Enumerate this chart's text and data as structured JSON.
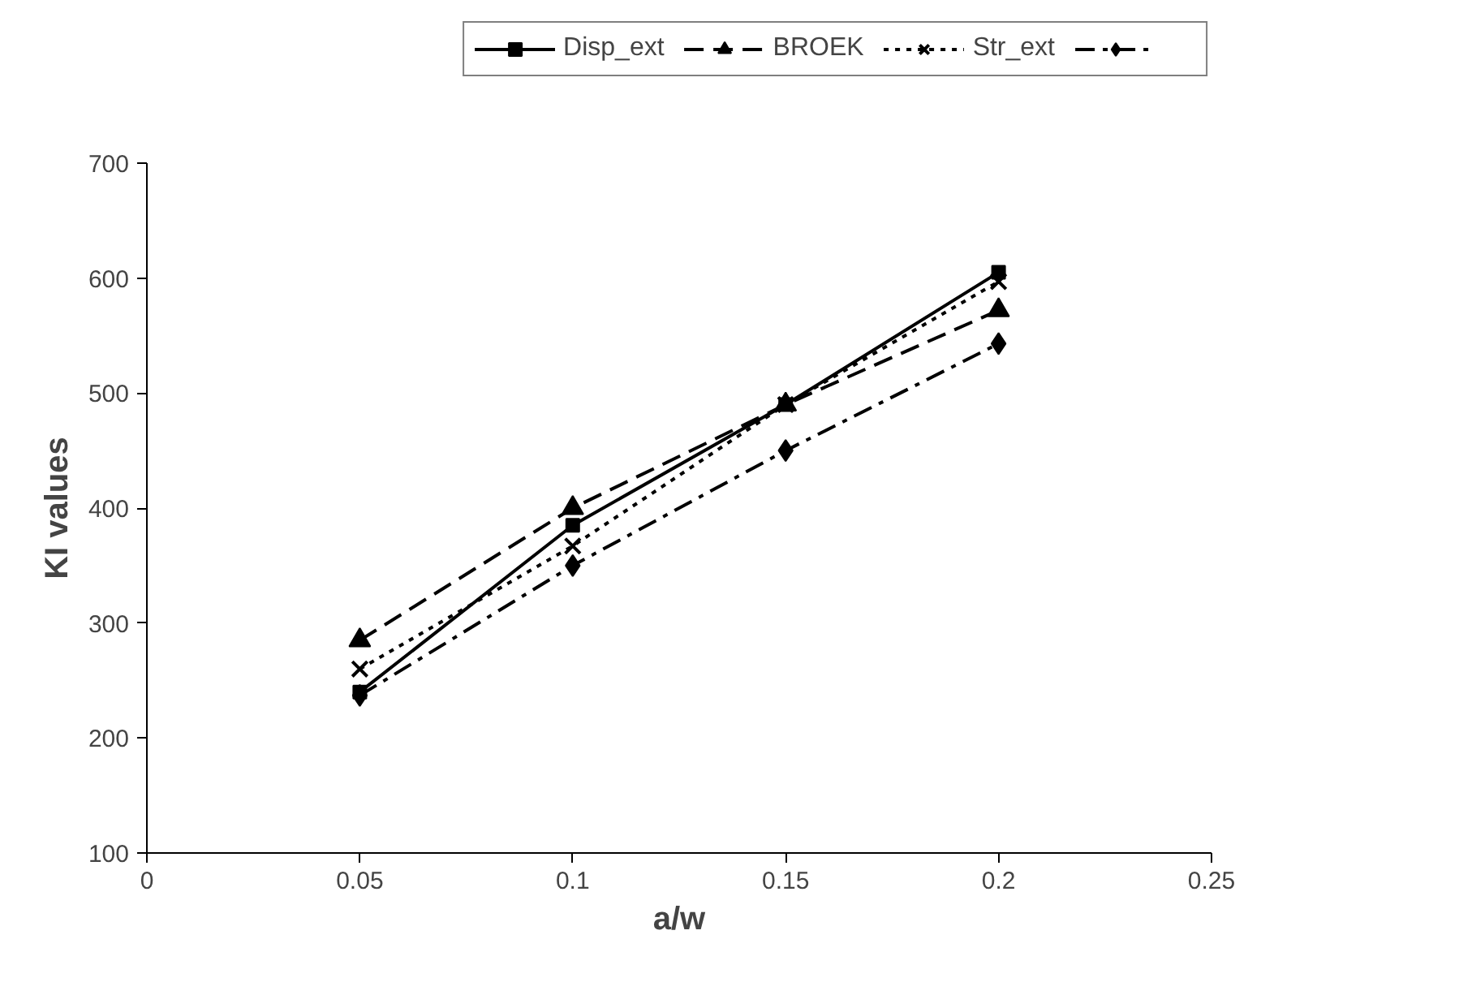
{
  "chart_data": {
    "type": "line",
    "xlabel": "a/w",
    "ylabel": "KI values",
    "x": [
      0.05,
      0.1,
      0.15,
      0.2
    ],
    "xlim": [
      0,
      0.25
    ],
    "xticks": [
      0,
      0.05,
      0.1,
      0.15,
      0.2,
      0.25
    ],
    "ylim": [
      100,
      700
    ],
    "yticks": [
      100,
      200,
      300,
      400,
      500,
      600,
      700
    ],
    "grid": false,
    "legend": "top",
    "series": [
      {
        "name": "Disp_ext",
        "color": "#000000",
        "marker": "square",
        "line_style": "solid",
        "values": [
          240,
          385,
          490,
          605
        ]
      },
      {
        "name": "BROEK",
        "color": "#000000",
        "marker": "triangle",
        "line_style": "dashed",
        "values": [
          285,
          400,
          490,
          572
        ]
      },
      {
        "name": "Str_ext",
        "color": "#000000",
        "marker": "cross",
        "line_style": "dotted",
        "values": [
          260,
          367,
          490,
          597
        ]
      },
      {
        "color": "#000000",
        "marker": "diamond",
        "line_style": "dashdot",
        "values": [
          237,
          350,
          450,
          543
        ]
      }
    ]
  }
}
